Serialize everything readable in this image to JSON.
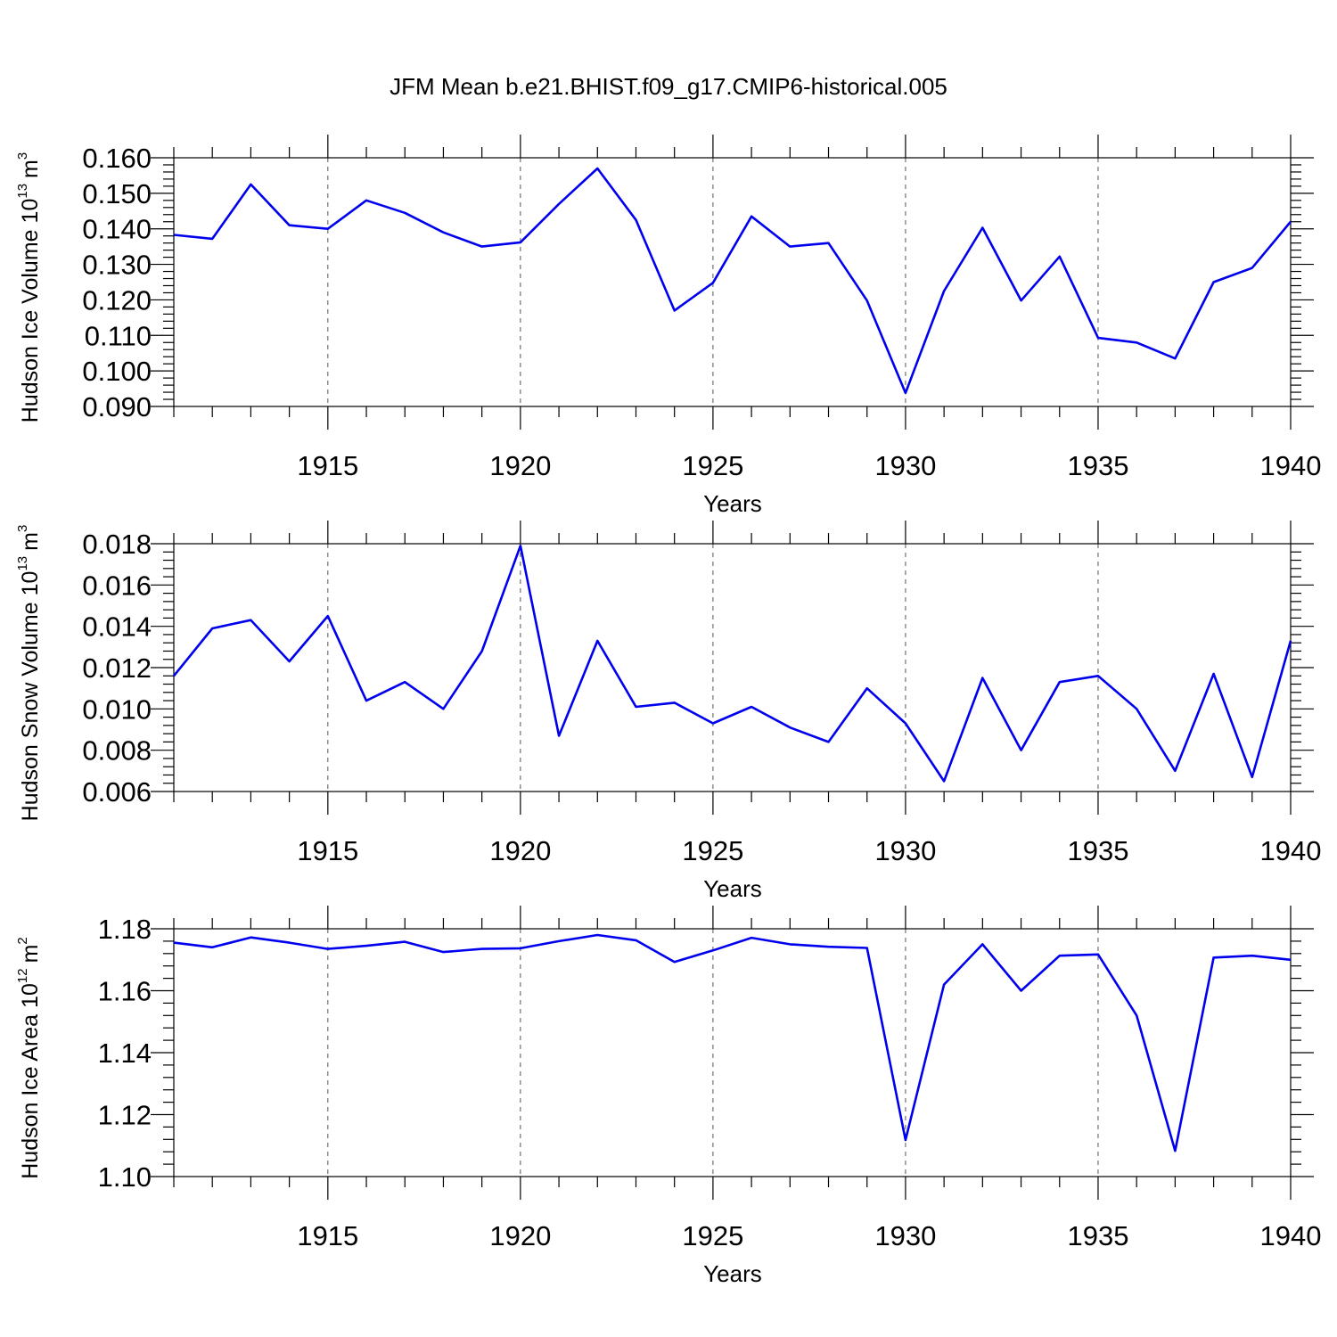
{
  "title": "JFM Mean b.e21.BHIST.f09_g17.CMIP6-historical.005",
  "colors": {
    "line": "#0000ee",
    "axis": "#000000",
    "grid": "#555555"
  },
  "chart_data": [
    {
      "type": "line",
      "ylabel": "Hudson Ice Volume",
      "yunit": {
        "base": "10",
        "exp": "13",
        "unit": "m",
        "unit_exp": "3"
      },
      "xlabel": "Years",
      "xlim": [
        1911,
        1940
      ],
      "ylim": [
        0.09,
        0.16
      ],
      "xticks": [
        "1915",
        "1920",
        "1925",
        "1930",
        "1935",
        "1940"
      ],
      "yticks": [
        "0.090",
        "0.100",
        "0.110",
        "0.120",
        "0.130",
        "0.140",
        "0.150",
        "0.160"
      ],
      "grid": "vertical dashed at major x ticks",
      "x": [
        1911,
        1912,
        1913,
        1914,
        1915,
        1916,
        1917,
        1918,
        1919,
        1920,
        1921,
        1922,
        1923,
        1924,
        1925,
        1926,
        1927,
        1928,
        1929,
        1930,
        1931,
        1932,
        1933,
        1934,
        1935,
        1936,
        1937,
        1938,
        1939,
        1940
      ],
      "values": [
        0.1383,
        0.1372,
        0.1525,
        0.141,
        0.14,
        0.148,
        0.1445,
        0.139,
        0.135,
        0.1362,
        0.147,
        0.157,
        0.1425,
        0.117,
        0.1248,
        0.1435,
        0.135,
        0.136,
        0.1198,
        0.0938,
        0.1225,
        0.1403,
        0.1198,
        0.1322,
        0.1093,
        0.108,
        0.1035,
        0.125,
        0.129,
        0.142
      ]
    },
    {
      "type": "line",
      "ylabel": "Hudson Snow Volume",
      "yunit": {
        "base": "10",
        "exp": "13",
        "unit": "m",
        "unit_exp": "3"
      },
      "xlabel": "Years",
      "xlim": [
        1911,
        1940
      ],
      "ylim": [
        0.006,
        0.018
      ],
      "xticks": [
        "1915",
        "1920",
        "1925",
        "1930",
        "1935",
        "1940"
      ],
      "yticks": [
        "0.006",
        "0.008",
        "0.010",
        "0.012",
        "0.014",
        "0.016",
        "0.018"
      ],
      "grid": "vertical dashed at major x ticks",
      "x": [
        1911,
        1912,
        1913,
        1914,
        1915,
        1916,
        1917,
        1918,
        1919,
        1920,
        1921,
        1922,
        1923,
        1924,
        1925,
        1926,
        1927,
        1928,
        1929,
        1930,
        1931,
        1932,
        1933,
        1934,
        1935,
        1936,
        1937,
        1938,
        1939,
        1940
      ],
      "values": [
        0.0116,
        0.0139,
        0.0143,
        0.0123,
        0.0145,
        0.0104,
        0.0113,
        0.01,
        0.0128,
        0.0179,
        0.0087,
        0.0133,
        0.0101,
        0.0103,
        0.0093,
        0.0101,
        0.0091,
        0.0084,
        0.011,
        0.0093,
        0.0065,
        0.0115,
        0.008,
        0.0113,
        0.0116,
        0.01,
        0.007,
        0.0117,
        0.0067,
        0.0133
      ]
    },
    {
      "type": "line",
      "ylabel": "Hudson Ice Area",
      "yunit": {
        "base": "10",
        "exp": "12",
        "unit": "m",
        "unit_exp": "2"
      },
      "xlabel": "Years",
      "xlim": [
        1911,
        1940
      ],
      "ylim": [
        1.1,
        1.18
      ],
      "xticks": [
        "1915",
        "1920",
        "1925",
        "1930",
        "1935",
        "1940"
      ],
      "yticks": [
        "1.10",
        "1.12",
        "1.14",
        "1.16",
        "1.18"
      ],
      "grid": "vertical dashed at major x ticks",
      "x": [
        1911,
        1912,
        1913,
        1914,
        1915,
        1916,
        1917,
        1918,
        1919,
        1920,
        1921,
        1922,
        1923,
        1924,
        1925,
        1926,
        1927,
        1928,
        1929,
        1930,
        1931,
        1932,
        1933,
        1934,
        1935,
        1936,
        1937,
        1938,
        1939,
        1940
      ],
      "values": [
        1.1755,
        1.174,
        1.1772,
        1.1755,
        1.1735,
        1.1745,
        1.1758,
        1.1725,
        1.1735,
        1.1737,
        1.176,
        1.178,
        1.1763,
        1.1693,
        1.173,
        1.1771,
        1.175,
        1.1742,
        1.1738,
        1.1118,
        1.162,
        1.175,
        1.16,
        1.1713,
        1.1717,
        1.152,
        1.1083,
        1.1707,
        1.1713,
        1.17
      ]
    }
  ]
}
